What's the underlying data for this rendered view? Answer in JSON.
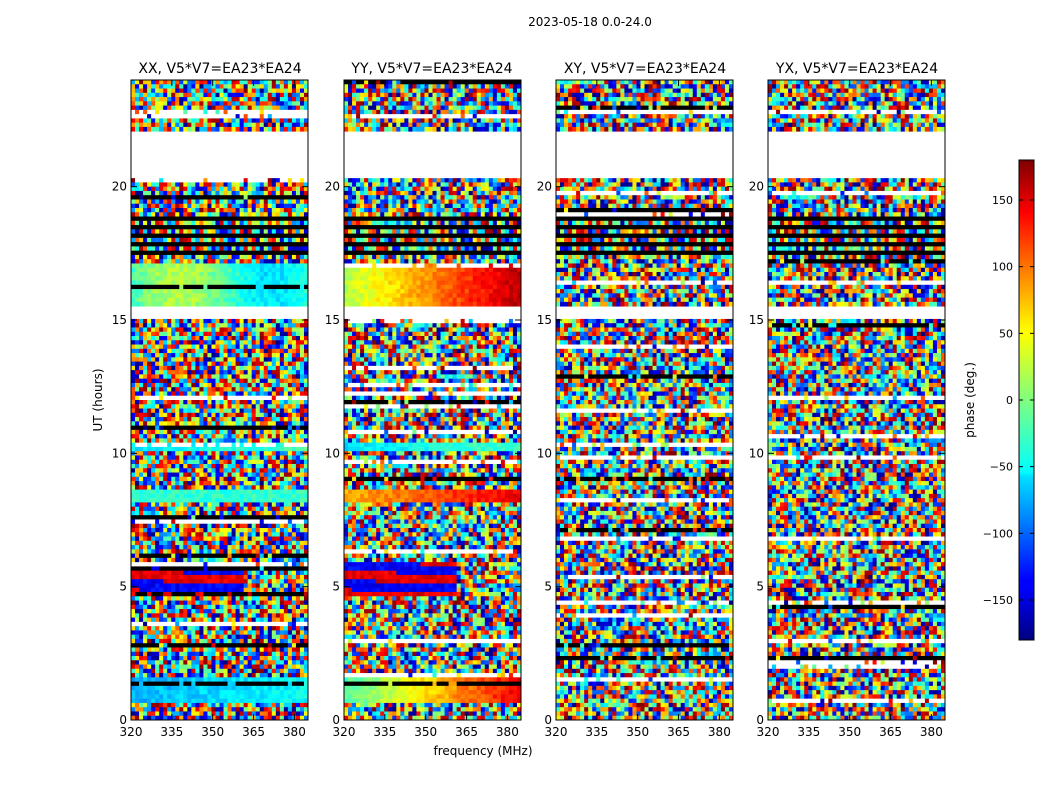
{
  "figure_title": "2023-05-18 0.0-24.0",
  "chart_data": {
    "type": "heatmap",
    "ylabel": "UT (hours)",
    "xlabel": "frequency (MHz)",
    "xlim": [
      320,
      385
    ],
    "ylim": [
      0,
      24
    ],
    "x_ticks": [
      "320",
      "335",
      "350",
      "365",
      "380"
    ],
    "y_ticks": [
      "0",
      "5",
      "10",
      "15",
      "20"
    ],
    "panels": [
      {
        "title": "XX, V5*V7=EA23*EA24",
        "pol": "XX"
      },
      {
        "title": "YY, V5*V7=EA23*EA24",
        "pol": "YY"
      },
      {
        "title": "XY, V5*V7=EA23*EA24",
        "pol": "XY"
      },
      {
        "title": "YX, V5*V7=EA23*EA24",
        "pol": "YX"
      }
    ],
    "colorbar": {
      "label": "phase (deg.)",
      "range": [
        -180,
        180
      ],
      "ticks": [
        "150",
        "100",
        "50",
        "0",
        "−50",
        "−100",
        "−150"
      ],
      "colormap": "jet"
    },
    "data_gaps_hours": [
      [
        20.4,
        22.0
      ],
      [
        15.0,
        15.5
      ]
    ],
    "dark_band_hours": [
      17.5,
      18.9
    ]
  }
}
